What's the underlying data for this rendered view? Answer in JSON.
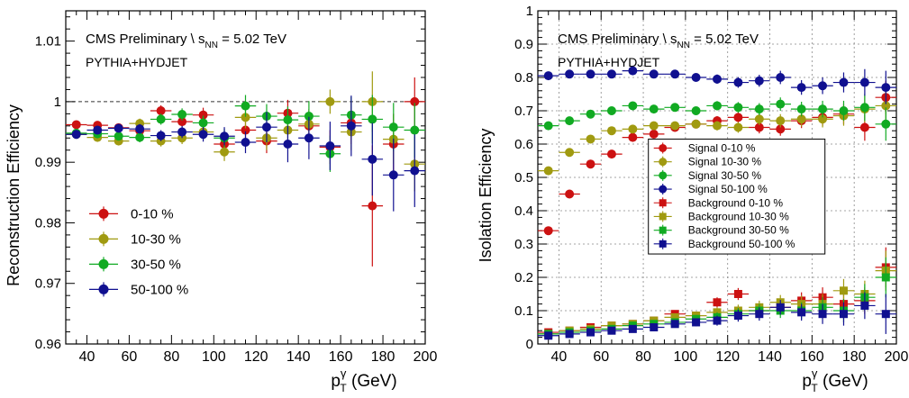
{
  "chart_data": [
    {
      "type": "scatter",
      "title": "CMS Preliminary \\ s",
      "title_sub": "NN",
      "title_tail": " = 5.02 TeV",
      "subtitle": "PYTHIA+HYDJET",
      "ylabel": "Reconstruction Efficiency",
      "xlabel_main": "p",
      "xlabel_sup": "γ",
      "xlabel_sub": "T",
      "xlabel_tail": " (GeV)",
      "xlim": [
        30,
        200
      ],
      "ylim": [
        0.96,
        1.015
      ],
      "xticks": [
        "40",
        "60",
        "80",
        "100",
        "120",
        "140",
        "160",
        "180",
        "200"
      ],
      "yticks": [
        "0.96",
        "0.97",
        "0.98",
        "0.99",
        "1",
        "1.01"
      ],
      "reference_line": 1.0,
      "legend_position": "bottom-left",
      "series": [
        {
          "name": "0-10 %",
          "color": "#cc1111",
          "marker": "circle",
          "x": [
            35,
            45,
            55,
            65,
            75,
            85,
            95,
            105,
            115,
            125,
            135,
            145,
            155,
            165,
            175,
            185,
            195
          ],
          "y": [
            0.9962,
            0.9961,
            0.9957,
            0.9952,
            0.9985,
            0.9967,
            0.9978,
            0.993,
            0.9953,
            0.9935,
            0.9981,
            0.996,
            0.9925,
            0.9965,
            0.9828,
            0.993,
            1.0
          ],
          "err": [
            0.0006,
            0.0006,
            0.0007,
            0.0008,
            0.0009,
            0.001,
            0.0012,
            0.0015,
            0.0018,
            0.002,
            0.0022,
            0.0025,
            0.0028,
            0.0035,
            0.01,
            0.005,
            0.004
          ]
        },
        {
          "name": "10-30 %",
          "color": "#a09a10",
          "marker": "circle",
          "x": [
            35,
            45,
            55,
            65,
            75,
            85,
            95,
            105,
            115,
            125,
            135,
            145,
            155,
            165,
            175,
            185,
            195
          ],
          "y": [
            0.9946,
            0.9941,
            0.9935,
            0.9964,
            0.9935,
            0.994,
            0.995,
            0.9917,
            0.9974,
            0.994,
            0.9953,
            0.9963,
            1.0,
            0.995,
            1.0,
            0.9938,
            0.9897
          ],
          "err": [
            0.0006,
            0.0006,
            0.0007,
            0.0008,
            0.0009,
            0.001,
            0.0012,
            0.0015,
            0.0018,
            0.002,
            0.0022,
            0.0025,
            0.002,
            0.003,
            0.005,
            0.004,
            0.0045
          ]
        },
        {
          "name": "30-50 %",
          "color": "#11aa22",
          "marker": "circle",
          "x": [
            35,
            45,
            55,
            65,
            75,
            85,
            95,
            105,
            115,
            125,
            135,
            145,
            155,
            165,
            175,
            185,
            195
          ],
          "y": [
            0.9948,
            0.9947,
            0.9943,
            0.9941,
            0.9971,
            0.9979,
            0.9965,
            0.994,
            0.9993,
            0.9976,
            0.997,
            0.9976,
            0.9914,
            0.9978,
            0.9971,
            0.9958,
            0.9953
          ],
          "err": [
            0.0006,
            0.0006,
            0.0007,
            0.0008,
            0.0009,
            0.001,
            0.0012,
            0.0015,
            0.0018,
            0.002,
            0.0022,
            0.0025,
            0.003,
            0.003,
            0.004,
            0.004,
            0.0045
          ]
        },
        {
          "name": "50-100 %",
          "color": "#101090",
          "marker": "circle",
          "x": [
            35,
            45,
            55,
            65,
            75,
            85,
            95,
            105,
            115,
            125,
            135,
            145,
            155,
            165,
            175,
            185,
            195
          ],
          "y": [
            0.9946,
            0.9953,
            0.9956,
            0.9955,
            0.9944,
            0.995,
            0.9946,
            0.9943,
            0.9933,
            0.9958,
            0.993,
            0.994,
            0.9927,
            0.996,
            0.9905,
            0.9879,
            0.9886
          ],
          "err": [
            0.0006,
            0.0006,
            0.0007,
            0.0008,
            0.0009,
            0.001,
            0.0012,
            0.0015,
            0.0018,
            0.0025,
            0.003,
            0.0035,
            0.004,
            0.005,
            0.006,
            0.006,
            0.006
          ]
        }
      ]
    },
    {
      "type": "scatter",
      "title": "CMS Preliminary \\ s",
      "title_sub": "NN",
      "title_tail": " = 5.02 TeV",
      "subtitle": "PYTHIA+HYDJET",
      "ylabel": "Isolation Efficiency",
      "xlabel_main": "p",
      "xlabel_sup": "γ",
      "xlabel_sub": "T",
      "xlabel_tail": " (GeV)",
      "xlim": [
        30,
        200
      ],
      "ylim": [
        0,
        1
      ],
      "xticks": [
        "40",
        "60",
        "80",
        "100",
        "120",
        "140",
        "160",
        "180",
        "200"
      ],
      "yticks": [
        "0",
        "0.1",
        "0.2",
        "0.3",
        "0.4",
        "0.5",
        "0.6",
        "0.7",
        "0.8",
        "0.9",
        "1"
      ],
      "grid": true,
      "legend_position": "center-right",
      "series": [
        {
          "name": "Signal 0-10 %",
          "color": "#cc1111",
          "marker": "circle",
          "x": [
            35,
            45,
            55,
            65,
            75,
            85,
            95,
            105,
            115,
            125,
            135,
            145,
            155,
            165,
            175,
            185,
            195
          ],
          "y": [
            0.34,
            0.45,
            0.54,
            0.57,
            0.62,
            0.63,
            0.65,
            0.66,
            0.67,
            0.68,
            0.65,
            0.645,
            0.67,
            0.68,
            0.69,
            0.65,
            0.74
          ],
          "err": [
            0.004,
            0.005,
            0.006,
            0.007,
            0.008,
            0.009,
            0.01,
            0.012,
            0.014,
            0.016,
            0.018,
            0.02,
            0.022,
            0.025,
            0.03,
            0.04,
            0.05
          ]
        },
        {
          "name": "Signal 10-30 %",
          "color": "#a09a10",
          "marker": "circle",
          "x": [
            35,
            45,
            55,
            65,
            75,
            85,
            95,
            105,
            115,
            125,
            135,
            145,
            155,
            165,
            175,
            185,
            195
          ],
          "y": [
            0.52,
            0.575,
            0.615,
            0.64,
            0.645,
            0.655,
            0.655,
            0.66,
            0.655,
            0.65,
            0.675,
            0.67,
            0.675,
            0.675,
            0.685,
            0.705,
            0.715
          ],
          "err": [
            0.004,
            0.005,
            0.006,
            0.007,
            0.008,
            0.009,
            0.01,
            0.012,
            0.014,
            0.016,
            0.018,
            0.02,
            0.022,
            0.025,
            0.03,
            0.04,
            0.05
          ]
        },
        {
          "name": "Signal 30-50 %",
          "color": "#11aa22",
          "marker": "circle",
          "x": [
            35,
            45,
            55,
            65,
            75,
            85,
            95,
            105,
            115,
            125,
            135,
            145,
            155,
            165,
            175,
            185,
            195
          ],
          "y": [
            0.655,
            0.67,
            0.69,
            0.7,
            0.715,
            0.705,
            0.71,
            0.7,
            0.715,
            0.71,
            0.705,
            0.72,
            0.705,
            0.705,
            0.7,
            0.71,
            0.66
          ],
          "err": [
            0.004,
            0.005,
            0.006,
            0.007,
            0.008,
            0.009,
            0.01,
            0.012,
            0.014,
            0.016,
            0.018,
            0.02,
            0.022,
            0.025,
            0.03,
            0.04,
            0.05
          ]
        },
        {
          "name": "Signal 50-100 %",
          "color": "#101090",
          "marker": "circle",
          "x": [
            35,
            45,
            55,
            65,
            75,
            85,
            95,
            105,
            115,
            125,
            135,
            145,
            155,
            165,
            175,
            185,
            195
          ],
          "y": [
            0.805,
            0.81,
            0.81,
            0.81,
            0.82,
            0.81,
            0.81,
            0.8,
            0.795,
            0.785,
            0.79,
            0.8,
            0.77,
            0.775,
            0.785,
            0.785,
            0.77
          ],
          "err": [
            0.004,
            0.005,
            0.006,
            0.007,
            0.008,
            0.009,
            0.01,
            0.012,
            0.014,
            0.016,
            0.018,
            0.02,
            0.022,
            0.025,
            0.03,
            0.04,
            0.05
          ]
        },
        {
          "name": "Background 0-10 %",
          "color": "#cc1111",
          "marker": "square",
          "x": [
            35,
            45,
            55,
            65,
            75,
            85,
            95,
            105,
            115,
            125,
            135,
            145,
            155,
            165,
            175,
            185,
            195
          ],
          "y": [
            0.035,
            0.04,
            0.05,
            0.055,
            0.06,
            0.07,
            0.09,
            0.085,
            0.125,
            0.15,
            0.1,
            0.11,
            0.13,
            0.14,
            0.12,
            0.13,
            0.23
          ],
          "err": [
            0.004,
            0.004,
            0.005,
            0.006,
            0.007,
            0.008,
            0.01,
            0.012,
            0.015,
            0.018,
            0.02,
            0.022,
            0.025,
            0.03,
            0.035,
            0.04,
            0.06
          ]
        },
        {
          "name": "Background 10-30 %",
          "color": "#a09a10",
          "marker": "square",
          "x": [
            35,
            45,
            55,
            65,
            75,
            85,
            95,
            105,
            115,
            125,
            135,
            145,
            155,
            165,
            175,
            185,
            195
          ],
          "y": [
            0.03,
            0.04,
            0.045,
            0.055,
            0.06,
            0.07,
            0.08,
            0.085,
            0.095,
            0.1,
            0.11,
            0.125,
            0.12,
            0.12,
            0.16,
            0.15,
            0.22
          ],
          "err": [
            0.004,
            0.004,
            0.005,
            0.006,
            0.007,
            0.008,
            0.01,
            0.012,
            0.015,
            0.018,
            0.02,
            0.022,
            0.025,
            0.03,
            0.035,
            0.04,
            0.06
          ]
        },
        {
          "name": "Background 30-50 %",
          "color": "#11aa22",
          "marker": "square",
          "x": [
            35,
            45,
            55,
            65,
            75,
            85,
            95,
            105,
            115,
            125,
            135,
            145,
            155,
            165,
            175,
            185,
            195
          ],
          "y": [
            0.03,
            0.035,
            0.04,
            0.045,
            0.055,
            0.06,
            0.065,
            0.075,
            0.08,
            0.09,
            0.1,
            0.1,
            0.1,
            0.11,
            0.1,
            0.14,
            0.2
          ],
          "err": [
            0.004,
            0.004,
            0.005,
            0.006,
            0.007,
            0.008,
            0.01,
            0.012,
            0.015,
            0.018,
            0.02,
            0.022,
            0.025,
            0.03,
            0.035,
            0.04,
            0.06
          ]
        },
        {
          "name": "Background 50-100 %",
          "color": "#101090",
          "marker": "square",
          "x": [
            35,
            45,
            55,
            65,
            75,
            85,
            95,
            105,
            115,
            125,
            135,
            145,
            155,
            165,
            175,
            185,
            195
          ],
          "y": [
            0.025,
            0.03,
            0.035,
            0.04,
            0.045,
            0.05,
            0.06,
            0.065,
            0.07,
            0.085,
            0.09,
            0.11,
            0.095,
            0.09,
            0.09,
            0.115,
            0.09
          ],
          "err": [
            0.004,
            0.004,
            0.005,
            0.006,
            0.007,
            0.008,
            0.01,
            0.012,
            0.015,
            0.018,
            0.02,
            0.022,
            0.025,
            0.03,
            0.035,
            0.04,
            0.06
          ]
        }
      ]
    }
  ]
}
